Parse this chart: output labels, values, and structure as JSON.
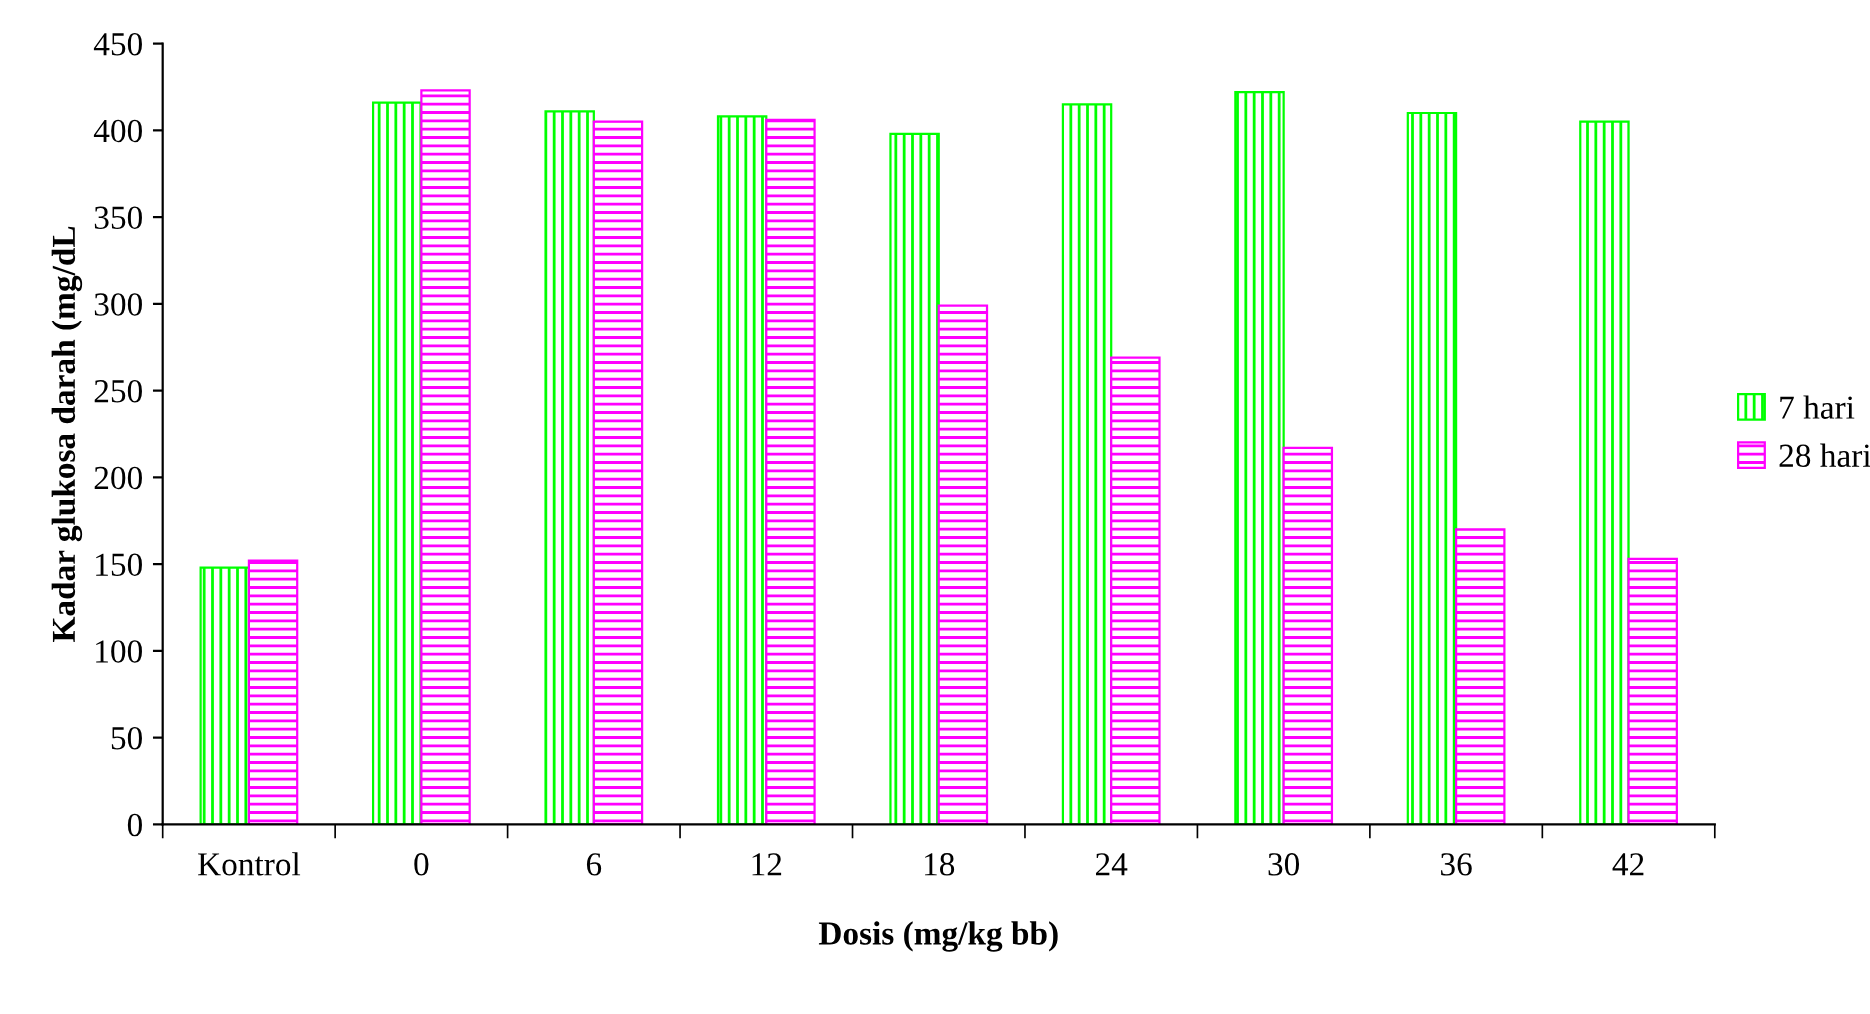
{
  "chart_data": {
    "type": "bar",
    "xlabel": "Dosis (mg/kg bb)",
    "ylabel": "Kadar glukosa darah (mg/dL",
    "categories": [
      "Kontrol",
      "0",
      "6",
      "12",
      "18",
      "24",
      "30",
      "36",
      "42"
    ],
    "series": [
      {
        "name": "7 hari",
        "color": "#00ff00",
        "values": [
          148,
          416,
          411,
          408,
          398,
          415,
          422,
          410,
          405
        ]
      },
      {
        "name": "28 hari",
        "color": "#ff00ff",
        "values": [
          152,
          423,
          405,
          406,
          299,
          269,
          217,
          170,
          153
        ]
      }
    ],
    "ylim": [
      0,
      450
    ],
    "yticks": [
      0,
      50,
      100,
      150,
      200,
      250,
      300,
      350,
      400,
      450
    ],
    "grid": false,
    "legend": "right"
  }
}
